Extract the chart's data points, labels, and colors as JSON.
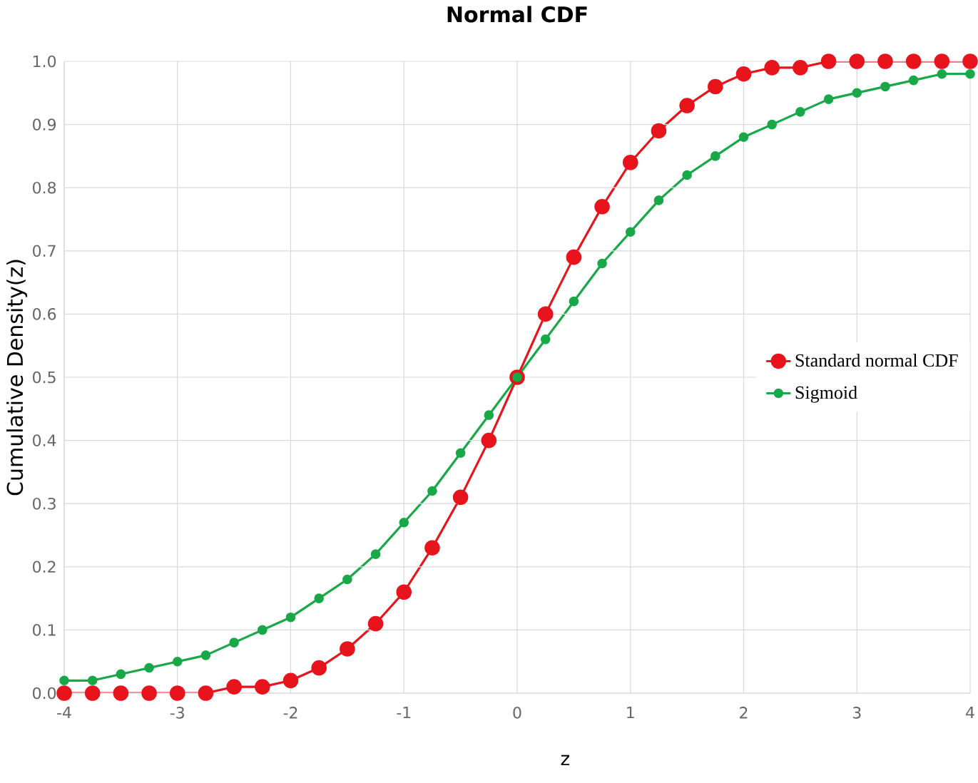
{
  "chart_data": {
    "type": "line",
    "title": "Normal CDF",
    "xlabel": "z",
    "ylabel": "Cumulative Density(z)",
    "x": [
      -4,
      -3.75,
      -3.5,
      -3.25,
      -3,
      -2.75,
      -2.5,
      -2.25,
      -2,
      -1.75,
      -1.5,
      -1.25,
      -1,
      -0.75,
      -0.5,
      -0.25,
      0,
      0.25,
      0.5,
      0.75,
      1,
      1.25,
      1.5,
      1.75,
      2,
      2.25,
      2.5,
      2.75,
      3,
      3.25,
      3.5,
      3.75,
      4
    ],
    "series": [
      {
        "name": "Standard normal CDF",
        "color": "#e8141b",
        "values": [
          0.0,
          0.0,
          0.0,
          0.0,
          0.0,
          0.0,
          0.01,
          0.01,
          0.02,
          0.04,
          0.07,
          0.11,
          0.16,
          0.23,
          0.31,
          0.4,
          0.5,
          0.6,
          0.69,
          0.77,
          0.84,
          0.89,
          0.93,
          0.96,
          0.98,
          0.99,
          0.99,
          1.0,
          1.0,
          1.0,
          1.0,
          1.0,
          1.0
        ]
      },
      {
        "name": "Sigmoid",
        "color": "#18a848",
        "values": [
          0.02,
          0.02,
          0.03,
          0.04,
          0.05,
          0.06,
          0.08,
          0.1,
          0.12,
          0.15,
          0.18,
          0.22,
          0.27,
          0.32,
          0.38,
          0.44,
          0.5,
          0.56,
          0.62,
          0.68,
          0.73,
          0.78,
          0.82,
          0.85,
          0.88,
          0.9,
          0.92,
          0.94,
          0.95,
          0.96,
          0.97,
          0.98,
          0.98
        ]
      }
    ],
    "xlim": [
      -4,
      4
    ],
    "ylim": [
      0,
      1
    ],
    "xticks": [
      -4,
      -3,
      -2,
      -1,
      0,
      1,
      2,
      3,
      4
    ],
    "yticks": [
      {
        "value": 0,
        "label": "0.0"
      },
      {
        "value": 0.1,
        "label": "0.1"
      },
      {
        "value": 0.2,
        "label": "0.2"
      },
      {
        "value": 0.3,
        "label": "0.3"
      },
      {
        "value": 0.4,
        "label": "0.4"
      },
      {
        "value": 0.5,
        "label": "0.5"
      },
      {
        "value": 0.6,
        "label": "0.6"
      },
      {
        "value": 0.7,
        "label": "0.7"
      },
      {
        "value": 0.8,
        "label": "0.8"
      },
      {
        "value": 0.9,
        "label": "0.9"
      },
      {
        "value": 1,
        "label": "1.0"
      }
    ],
    "grid": true,
    "legend": "right",
    "marker": "circle",
    "line_style": "solid"
  }
}
